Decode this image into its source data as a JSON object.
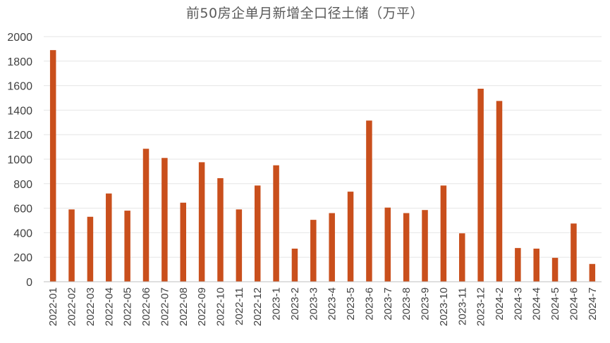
{
  "chart_data": {
    "type": "bar",
    "title": "前50房企单月新增全口径土储（万平）",
    "xlabel": "",
    "ylabel": "",
    "ylim": [
      0,
      2000
    ],
    "yticks": [
      0,
      200,
      400,
      600,
      800,
      1000,
      1200,
      1400,
      1600,
      1800,
      2000
    ],
    "grid": true,
    "legend": "none",
    "bar_color": "#c94f1c",
    "categories": [
      "2022-01",
      "2022-02",
      "2022-03",
      "2022-04",
      "2022-05",
      "2022-06",
      "2022-07",
      "2022-08",
      "2022-09",
      "2022-10",
      "2022-11",
      "2022-12",
      "2023-1",
      "2023-2",
      "2023-3",
      "2023-4",
      "2023-5",
      "2023-6",
      "2023-7",
      "2023-8",
      "2023-9",
      "2023-10",
      "2023-11",
      "2023-12",
      "2024-2",
      "2024-3",
      "2024-4",
      "2024-5",
      "2024-6",
      "2024-7"
    ],
    "values": [
      1890,
      590,
      530,
      720,
      580,
      1085,
      1010,
      645,
      975,
      845,
      590,
      785,
      950,
      270,
      505,
      560,
      735,
      1315,
      605,
      560,
      585,
      785,
      395,
      1575,
      1475,
      275,
      270,
      195,
      475,
      145
    ]
  }
}
